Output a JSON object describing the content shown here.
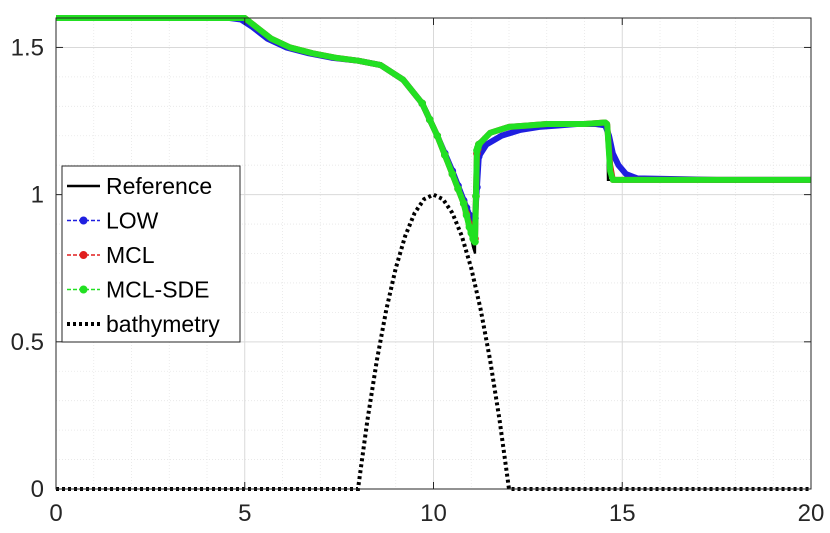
{
  "chart_data": {
    "type": "line",
    "title": "",
    "xlabel": "",
    "ylabel": "",
    "xlim": [
      0,
      20
    ],
    "ylim": [
      0,
      1.6
    ],
    "xticks": [
      "0",
      "5",
      "10",
      "15",
      "20"
    ],
    "yticks": [
      "0",
      "0.5",
      "1",
      "1.5"
    ],
    "grid": true,
    "minor_grid": true,
    "legend_position": "left",
    "series": [
      {
        "name": "Reference",
        "color": "#000000",
        "style": "solid",
        "x": [
          0,
          4.8,
          5.0,
          5.3,
          5.7,
          6.2,
          6.8,
          7.4,
          8.0,
          8.6,
          9.2,
          9.7,
          10.1,
          10.5,
          10.8,
          10.95,
          11.05,
          11.1,
          11.12,
          11.2,
          11.5,
          12.0,
          12.5,
          13.0,
          13.5,
          14.0,
          14.55,
          14.6,
          14.62,
          14.7,
          15.0,
          17.5,
          20
        ],
        "y": [
          1.6,
          1.6,
          1.6,
          1.57,
          1.53,
          1.5,
          1.48,
          1.465,
          1.455,
          1.44,
          1.39,
          1.31,
          1.2,
          1.07,
          0.96,
          0.88,
          0.82,
          0.8,
          1.15,
          1.18,
          1.21,
          1.23,
          1.235,
          1.24,
          1.24,
          1.24,
          1.245,
          1.245,
          1.05,
          1.05,
          1.05,
          1.05,
          1.05
        ]
      },
      {
        "name": "LOW",
        "color": "#1f1fe0",
        "style": "dash-marker",
        "x": [
          0,
          4.6,
          4.9,
          5.2,
          5.6,
          6.1,
          6.7,
          7.3,
          8.0,
          8.6,
          9.2,
          9.7,
          10.1,
          10.5,
          10.8,
          10.95,
          11.05,
          11.1,
          11.2,
          11.4,
          11.8,
          12.3,
          12.8,
          13.3,
          13.8,
          14.3,
          14.55,
          14.65,
          14.75,
          14.9,
          15.1,
          15.4,
          17.5,
          20
        ],
        "y": [
          1.6,
          1.6,
          1.595,
          1.57,
          1.53,
          1.5,
          1.48,
          1.465,
          1.455,
          1.44,
          1.39,
          1.31,
          1.2,
          1.08,
          0.98,
          0.93,
          0.91,
          0.92,
          1.13,
          1.17,
          1.2,
          1.22,
          1.23,
          1.235,
          1.24,
          1.24,
          1.235,
          1.2,
          1.14,
          1.1,
          1.07,
          1.055,
          1.05,
          1.05
        ]
      },
      {
        "name": "MCL",
        "color": "#e01f1f",
        "style": "dash-marker",
        "x": [
          0,
          4.8,
          5.0,
          5.3,
          5.7,
          6.2,
          6.8,
          7.4,
          8.0,
          8.6,
          9.2,
          9.7,
          10.1,
          10.5,
          10.8,
          10.95,
          11.05,
          11.1,
          11.15,
          11.2,
          11.5,
          12.0,
          12.5,
          13.0,
          13.5,
          14.0,
          14.55,
          14.6,
          14.68,
          14.75,
          15.0,
          17.5,
          20
        ],
        "y": [
          1.6,
          1.6,
          1.6,
          1.57,
          1.53,
          1.5,
          1.48,
          1.465,
          1.455,
          1.44,
          1.39,
          1.31,
          1.2,
          1.07,
          0.97,
          0.9,
          0.86,
          0.85,
          1.14,
          1.17,
          1.21,
          1.23,
          1.235,
          1.24,
          1.24,
          1.24,
          1.245,
          1.24,
          1.1,
          1.05,
          1.05,
          1.05,
          1.05
        ]
      },
      {
        "name": "MCL-SDE",
        "color": "#22e022",
        "style": "dash-marker",
        "x": [
          0,
          4.8,
          5.0,
          5.3,
          5.7,
          6.2,
          6.8,
          7.4,
          8.0,
          8.6,
          9.2,
          9.7,
          10.1,
          10.5,
          10.8,
          10.95,
          11.05,
          11.1,
          11.15,
          11.2,
          11.5,
          12.0,
          12.5,
          13.0,
          13.5,
          14.0,
          14.55,
          14.6,
          14.68,
          14.75,
          15.0,
          17.5,
          20
        ],
        "y": [
          1.6,
          1.6,
          1.6,
          1.57,
          1.53,
          1.5,
          1.48,
          1.465,
          1.455,
          1.44,
          1.39,
          1.31,
          1.2,
          1.07,
          0.97,
          0.89,
          0.85,
          0.84,
          1.15,
          1.17,
          1.21,
          1.23,
          1.235,
          1.24,
          1.24,
          1.24,
          1.245,
          1.24,
          1.08,
          1.05,
          1.05,
          1.05,
          1.05
        ]
      },
      {
        "name": "bathymetry",
        "color": "#000000",
        "style": "dotted",
        "x": [
          0,
          8,
          8.25,
          8.5,
          8.75,
          9,
          9.25,
          9.5,
          9.75,
          10,
          10.25,
          10.5,
          10.75,
          11,
          11.25,
          11.5,
          11.75,
          12,
          20
        ],
        "y": [
          0,
          0,
          0.2344,
          0.4375,
          0.6094,
          0.75,
          0.8594,
          0.9375,
          0.9844,
          1.0,
          0.9844,
          0.9375,
          0.8594,
          0.75,
          0.6094,
          0.4375,
          0.2344,
          0,
          0
        ]
      }
    ]
  }
}
